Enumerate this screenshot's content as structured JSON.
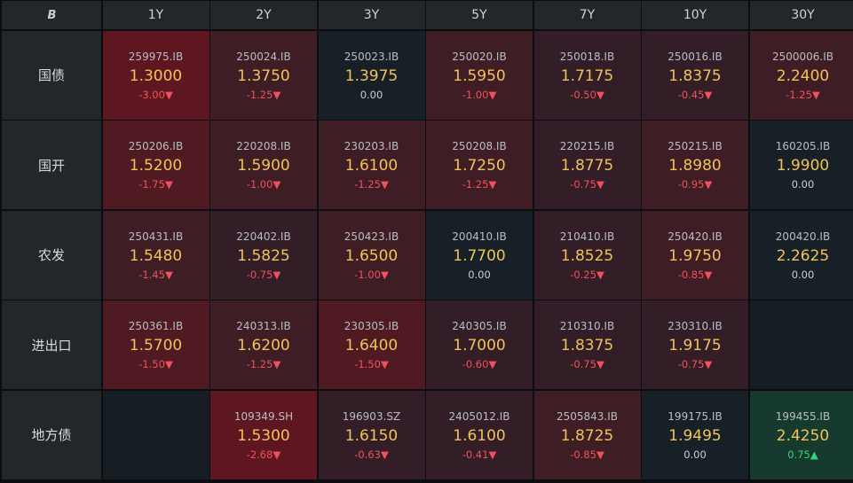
{
  "logo_text": "B",
  "columns": [
    "1Y",
    "2Y",
    "3Y",
    "5Y",
    "7Y",
    "10Y",
    "30Y"
  ],
  "rows": [
    {
      "label": "国债",
      "cells": [
        {
          "code": "259975.IB",
          "yield": "1.3000",
          "change": "-3.00▼",
          "dir": "down",
          "shade": "h1"
        },
        {
          "code": "250024.IB",
          "yield": "1.3750",
          "change": "-1.25▼",
          "dir": "down",
          "shade": "h3"
        },
        {
          "code": "250023.IB",
          "yield": "1.3975",
          "change": "0.00",
          "dir": "flat",
          "shade": "n"
        },
        {
          "code": "250020.IB",
          "yield": "1.5950",
          "change": "-1.00▼",
          "dir": "down",
          "shade": "h3"
        },
        {
          "code": "250018.IB",
          "yield": "1.7175",
          "change": "-0.50▼",
          "dir": "down",
          "shade": "h4"
        },
        {
          "code": "250016.IB",
          "yield": "1.8375",
          "change": "-0.45▼",
          "dir": "down",
          "shade": "h4"
        },
        {
          "code": "2500006.IB",
          "yield": "2.2400",
          "change": "-1.25▼",
          "dir": "down",
          "shade": "h3"
        }
      ]
    },
    {
      "label": "国开",
      "cells": [
        {
          "code": "250206.IB",
          "yield": "1.5200",
          "change": "-1.75▼",
          "dir": "down",
          "shade": "h2"
        },
        {
          "code": "220208.IB",
          "yield": "1.5900",
          "change": "-1.00▼",
          "dir": "down",
          "shade": "h3"
        },
        {
          "code": "230203.IB",
          "yield": "1.6100",
          "change": "-1.25▼",
          "dir": "down",
          "shade": "h3"
        },
        {
          "code": "250208.IB",
          "yield": "1.7250",
          "change": "-1.25▼",
          "dir": "down",
          "shade": "h3"
        },
        {
          "code": "220215.IB",
          "yield": "1.8775",
          "change": "-0.75▼",
          "dir": "down",
          "shade": "h4"
        },
        {
          "code": "250215.IB",
          "yield": "1.8980",
          "change": "-0.95▼",
          "dir": "down",
          "shade": "h3"
        },
        {
          "code": "160205.IB",
          "yield": "1.9900",
          "change": "0.00",
          "dir": "flat",
          "shade": "n"
        }
      ]
    },
    {
      "label": "农发",
      "cells": [
        {
          "code": "250431.IB",
          "yield": "1.5480",
          "change": "-1.45▼",
          "dir": "down",
          "shade": "h3"
        },
        {
          "code": "220402.IB",
          "yield": "1.5825",
          "change": "-0.75▼",
          "dir": "down",
          "shade": "h4"
        },
        {
          "code": "250423.IB",
          "yield": "1.6500",
          "change": "-1.00▼",
          "dir": "down",
          "shade": "h3"
        },
        {
          "code": "200410.IB",
          "yield": "1.7700",
          "change": "0.00",
          "dir": "flat",
          "shade": "n"
        },
        {
          "code": "210410.IB",
          "yield": "1.8525",
          "change": "-0.25▼",
          "dir": "down",
          "shade": "h4"
        },
        {
          "code": "250420.IB",
          "yield": "1.9750",
          "change": "-0.85▼",
          "dir": "down",
          "shade": "h3"
        },
        {
          "code": "200420.IB",
          "yield": "2.2625",
          "change": "0.00",
          "dir": "flat",
          "shade": "n"
        }
      ]
    },
    {
      "label": "进出口",
      "cells": [
        {
          "code": "250361.IB",
          "yield": "1.5700",
          "change": "-1.50▼",
          "dir": "down",
          "shade": "h2"
        },
        {
          "code": "240313.IB",
          "yield": "1.6200",
          "change": "-1.25▼",
          "dir": "down",
          "shade": "h3"
        },
        {
          "code": "230305.IB",
          "yield": "1.6400",
          "change": "-1.50▼",
          "dir": "down",
          "shade": "h2"
        },
        {
          "code": "240305.IB",
          "yield": "1.7000",
          "change": "-0.60▼",
          "dir": "down",
          "shade": "h4"
        },
        {
          "code": "210310.IB",
          "yield": "1.8375",
          "change": "-0.75▼",
          "dir": "down",
          "shade": "h4"
        },
        {
          "code": "230310.IB",
          "yield": "1.9175",
          "change": "-0.75▼",
          "dir": "down",
          "shade": "h4"
        },
        null
      ]
    },
    {
      "label": "地方债",
      "cells": [
        null,
        {
          "code": "109349.SH",
          "yield": "1.5300",
          "change": "-2.68▼",
          "dir": "down",
          "shade": "h1"
        },
        {
          "code": "196903.SZ",
          "yield": "1.6150",
          "change": "-0.63▼",
          "dir": "down",
          "shade": "h4"
        },
        {
          "code": "2405012.IB",
          "yield": "1.6100",
          "change": "-0.41▼",
          "dir": "down",
          "shade": "h4"
        },
        {
          "code": "2505843.IB",
          "yield": "1.8725",
          "change": "-0.85▼",
          "dir": "down",
          "shade": "h3"
        },
        {
          "code": "199175.IB",
          "yield": "1.9495",
          "change": "0.00",
          "dir": "flat",
          "shade": "n"
        },
        {
          "code": "199455.IB",
          "yield": "2.4250",
          "change": "0.75▲",
          "dir": "up",
          "shade": "g"
        }
      ]
    }
  ]
}
